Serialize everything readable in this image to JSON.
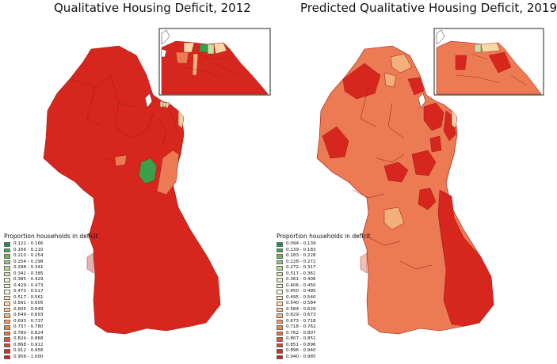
{
  "titles": {
    "left": "Qualitative Housing Deficit, 2012",
    "right": "Predicted Qualitative Housing Deficit, 2019"
  },
  "colors": {
    "red": "#d7261e",
    "orange": "#ec7a52",
    "light_orange": "#f4b07a",
    "pale": "#f7d6a8",
    "green": "#3aa04a",
    "light_green": "#bfe3a5"
  },
  "legend_left": {
    "title": "Proportion households in deficit",
    "items": [
      {
        "label": "0.122 - 0.166",
        "color": "#1a9641"
      },
      {
        "label": "0.166 - 0.210",
        "color": "#3fa94f"
      },
      {
        "label": "0.210 - 0.254",
        "color": "#64bb5e"
      },
      {
        "label": "0.254 - 0.298",
        "color": "#8ccd72"
      },
      {
        "label": "0.298 - 0.341",
        "color": "#b1dd8a"
      },
      {
        "label": "0.341 - 0.385",
        "color": "#cfeaa3"
      },
      {
        "label": "0.385 - 0.429",
        "color": "#e6f3bb"
      },
      {
        "label": "0.429 - 0.473",
        "color": "#f4f8cf"
      },
      {
        "label": "0.473 - 0.517",
        "color": "#fff8d8"
      },
      {
        "label": "0.517 - 0.561",
        "color": "#feeabf"
      },
      {
        "label": "0.561 - 0.605",
        "color": "#fed9a4"
      },
      {
        "label": "0.605 - 0.649",
        "color": "#fdc68a"
      },
      {
        "label": "0.649 - 0.693",
        "color": "#fcb173"
      },
      {
        "label": "0.693 - 0.737",
        "color": "#f99a5e"
      },
      {
        "label": "0.737 - 0.780",
        "color": "#f4824c"
      },
      {
        "label": "0.780 - 0.824",
        "color": "#ec6a3e"
      },
      {
        "label": "0.824 - 0.868",
        "color": "#e35333"
      },
      {
        "label": "0.868 - 0.912",
        "color": "#db3d29"
      },
      {
        "label": "0.912 - 0.956",
        "color": "#d52b21"
      },
      {
        "label": "0.956 - 1.000",
        "color": "#d7191c"
      }
    ]
  },
  "legend_right": {
    "title": "Proportion households in deficit",
    "items": [
      {
        "label": "0.094 - 0.139",
        "color": "#1a9641"
      },
      {
        "label": "0.139 - 0.183",
        "color": "#3fa94f"
      },
      {
        "label": "0.183 - 0.228",
        "color": "#64bb5e"
      },
      {
        "label": "0.228 - 0.272",
        "color": "#8ccd72"
      },
      {
        "label": "0.272 - 0.317",
        "color": "#b1dd8a"
      },
      {
        "label": "0.317 - 0.361",
        "color": "#cfeaa3"
      },
      {
        "label": "0.361 - 0.406",
        "color": "#e6f3bb"
      },
      {
        "label": "0.406 - 0.450",
        "color": "#f4f8cf"
      },
      {
        "label": "0.450 - 0.495",
        "color": "#fff8d8"
      },
      {
        "label": "0.495 - 0.540",
        "color": "#feeabf"
      },
      {
        "label": "0.540 - 0.584",
        "color": "#fed9a4"
      },
      {
        "label": "0.584 - 0.629",
        "color": "#fdc68a"
      },
      {
        "label": "0.629 - 0.673",
        "color": "#fcb173"
      },
      {
        "label": "0.673 - 0.718",
        "color": "#f99a5e"
      },
      {
        "label": "0.718 - 0.762",
        "color": "#f4824c"
      },
      {
        "label": "0.762 - 0.807",
        "color": "#ec6a3e"
      },
      {
        "label": "0.807 - 0.851",
        "color": "#e35333"
      },
      {
        "label": "0.851 - 0.896",
        "color": "#db3d29"
      },
      {
        "label": "0.896 - 0.940",
        "color": "#d52b21"
      },
      {
        "label": "0.940 - 0.985",
        "color": "#d7191c"
      }
    ]
  }
}
